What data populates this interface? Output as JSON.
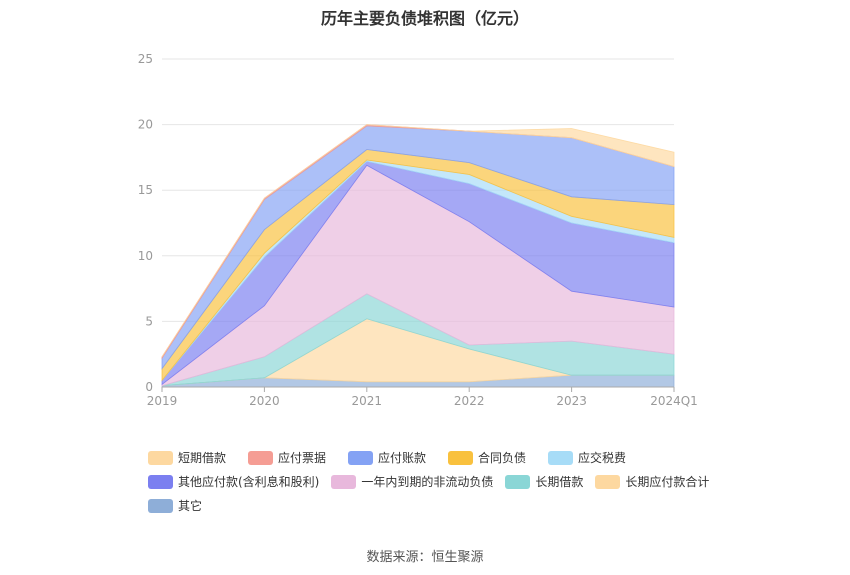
{
  "chart_data": {
    "type": "area",
    "stacked": true,
    "title": "历年主要负债堆积图（亿元）",
    "categories": [
      "2019",
      "2020",
      "2021",
      "2022",
      "2023",
      "2024Q1"
    ],
    "ylim": [
      0,
      25
    ],
    "yticks": [
      0,
      5,
      10,
      15,
      20,
      25
    ],
    "grid": true,
    "legend_position": "bottom",
    "series": [
      {
        "name": "其它",
        "color": "#8eaed8",
        "values": [
          0.1,
          0.7,
          0.4,
          0.4,
          0.9,
          0.9
        ]
      },
      {
        "name": "长期应付款合计",
        "color": "#fdd8a0",
        "values": [
          0.0,
          0.0,
          4.8,
          2.5,
          0.0,
          0.0
        ]
      },
      {
        "name": "长期借款",
        "color": "#8ad6d6",
        "values": [
          0.0,
          1.6,
          1.9,
          0.3,
          2.6,
          1.6
        ]
      },
      {
        "name": "一年内到期的非流动负债",
        "color": "#e8b8dc",
        "values": [
          0.1,
          3.9,
          9.8,
          9.4,
          3.8,
          3.6
        ]
      },
      {
        "name": "其他应付款(含利息和股利)",
        "color": "#7b7ff0",
        "values": [
          0.3,
          3.7,
          0.3,
          2.9,
          5.2,
          4.9
        ]
      },
      {
        "name": "应交税费",
        "color": "#a7dcf7",
        "values": [
          0.0,
          0.3,
          0.1,
          0.7,
          0.5,
          0.4
        ]
      },
      {
        "name": "合同负债",
        "color": "#f9c13e",
        "values": [
          0.9,
          1.8,
          0.8,
          0.9,
          1.5,
          2.5
        ]
      },
      {
        "name": "应付账款",
        "color": "#84a2f4",
        "values": [
          0.8,
          2.3,
          1.8,
          2.4,
          4.5,
          2.9
        ]
      },
      {
        "name": "应付票据",
        "color": "#f59d94",
        "values": [
          0.1,
          0.1,
          0.1,
          0.0,
          0.0,
          0.0
        ]
      },
      {
        "name": "短期借款",
        "color": "#fdd8a0",
        "values": [
          0.0,
          0.0,
          0.0,
          0.0,
          0.7,
          1.1
        ]
      }
    ]
  },
  "legend": [
    [
      {
        "label": "短期借款",
        "color": "#fdd8a0"
      },
      {
        "label": "应付票据",
        "color": "#f59d94"
      },
      {
        "label": "应付账款",
        "color": "#84a2f4"
      },
      {
        "label": "合同负债",
        "color": "#f9c13e"
      },
      {
        "label": "应交税费",
        "color": "#a7dcf7"
      }
    ],
    [
      {
        "label": "其他应付款(含利息和股利)",
        "color": "#7b7ff0"
      },
      {
        "label": "一年内到期的非流动负债",
        "color": "#e8b8dc"
      },
      {
        "label": "长期借款",
        "color": "#8ad6d6"
      },
      {
        "label": "长期应付款合计",
        "color": "#fdd8a0"
      }
    ],
    [
      {
        "label": "其它",
        "color": "#8eaed8"
      }
    ]
  ],
  "source": "数据来源：恒生聚源"
}
